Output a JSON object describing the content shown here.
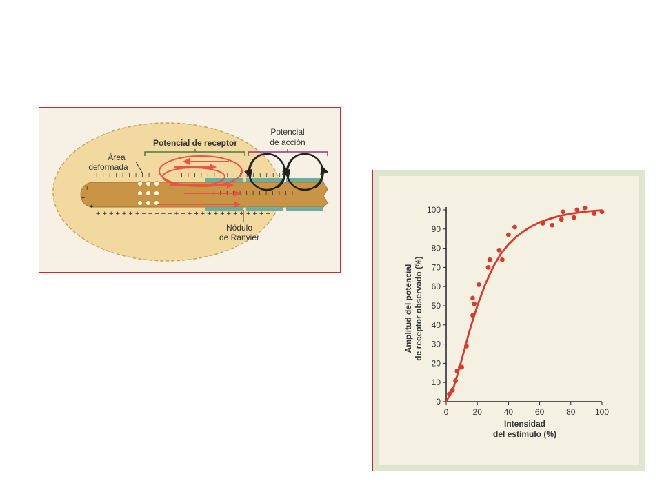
{
  "diagram": {
    "area_label_line1": "Área",
    "area_label_line2": "deformada",
    "receptor_label": "Potencial de receptor",
    "action_label_line1": "Potencial",
    "action_label_line2": "de acción",
    "node_label_line1": "Nódulo",
    "node_label_line2": "de Ranvier",
    "colors": {
      "capsule": "#f2d9a0",
      "axon": "#c99445",
      "myelin": "#6aaea2",
      "current": "#e8534a",
      "action": "#222222",
      "brace_receptor": "#4a7a3c",
      "brace_action": "#8c3a7a"
    }
  },
  "chart_data": {
    "type": "scatter",
    "xlabel_line1": "Intensidad",
    "xlabel_line2": "del estímulo (%)",
    "ylabel_line1": "Amplitud del potencial",
    "ylabel_line2": "de receptor observado (%)",
    "xlim": [
      0,
      100
    ],
    "ylim": [
      0,
      100
    ],
    "xticks": [
      0,
      20,
      40,
      60,
      80,
      100
    ],
    "yticks": [
      0,
      10,
      20,
      30,
      40,
      50,
      60,
      70,
      80,
      90,
      100
    ],
    "points": [
      [
        2,
        4
      ],
      [
        4,
        6
      ],
      [
        6,
        11
      ],
      [
        7,
        16
      ],
      [
        9,
        18
      ],
      [
        10,
        18
      ],
      [
        13,
        29
      ],
      [
        17,
        45
      ],
      [
        17,
        54
      ],
      [
        18,
        51
      ],
      [
        21,
        61
      ],
      [
        27,
        70
      ],
      [
        28,
        74
      ],
      [
        34,
        79
      ],
      [
        36,
        74
      ],
      [
        40,
        87
      ],
      [
        44,
        91
      ],
      [
        62,
        93
      ],
      [
        68,
        92
      ],
      [
        74,
        95
      ],
      [
        75,
        99
      ],
      [
        82,
        96
      ],
      [
        84,
        100
      ],
      [
        89,
        101
      ],
      [
        95,
        98
      ],
      [
        100,
        99
      ]
    ],
    "curve": [
      [
        0,
        0
      ],
      [
        5,
        8
      ],
      [
        10,
        22
      ],
      [
        15,
        37
      ],
      [
        20,
        50
      ],
      [
        25,
        61
      ],
      [
        30,
        70
      ],
      [
        35,
        77
      ],
      [
        40,
        82
      ],
      [
        45,
        86
      ],
      [
        50,
        89
      ],
      [
        55,
        91.5
      ],
      [
        60,
        93.5
      ],
      [
        65,
        95
      ],
      [
        70,
        96.2
      ],
      [
        75,
        97.2
      ],
      [
        80,
        98
      ],
      [
        85,
        98.6
      ],
      [
        90,
        99.1
      ],
      [
        95,
        99.5
      ],
      [
        100,
        99.8
      ]
    ],
    "colors": {
      "marks": "#d93a2b",
      "axes": "#222222"
    }
  }
}
